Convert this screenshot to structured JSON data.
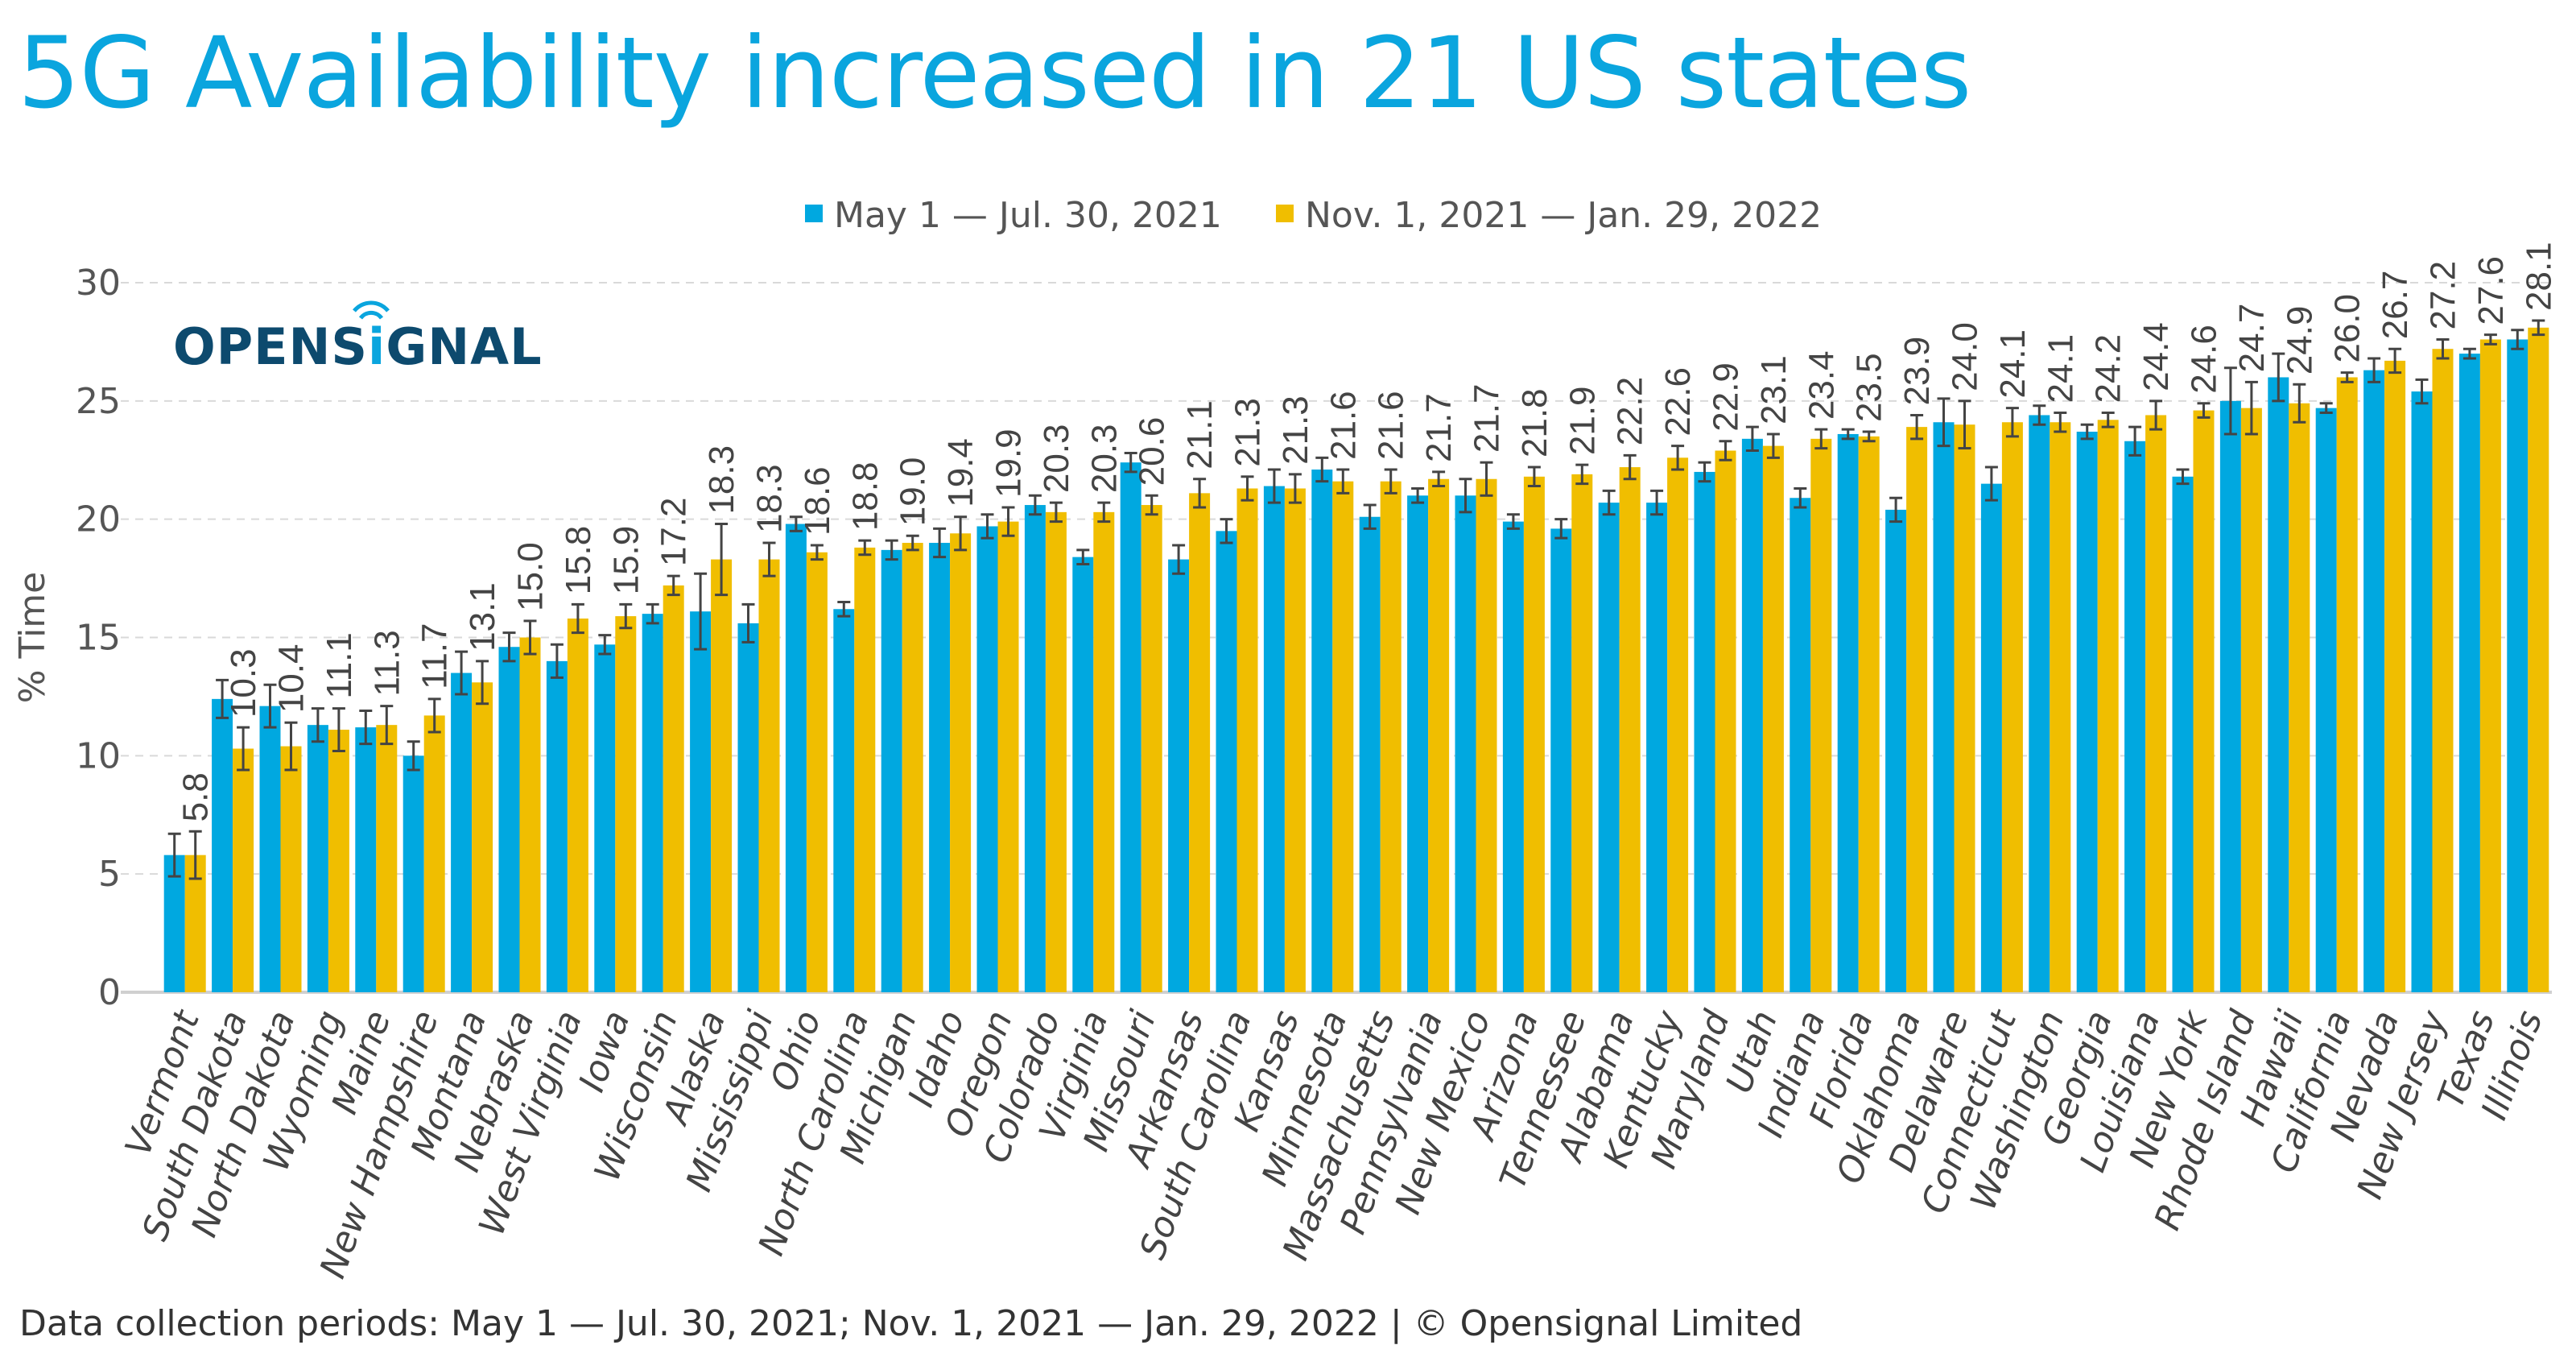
{
  "title": "5G Availability increased in 21 US states",
  "footer": "Data collection periods: May 1 — Jul. 30, 2021; Nov. 1, 2021 — Jan. 29, 2022 | © Opensignal Limited",
  "logo_text": "OPENSIGNAL",
  "colors": {
    "title": "#0aa5de",
    "series1": "#00a8e0",
    "series2": "#f0be00",
    "logo": "#0d4a6e",
    "errorbar": "#444444",
    "grid": "#d9d9d9"
  },
  "chart_data": {
    "type": "bar",
    "title": "5G Availability increased in 21 US states",
    "xlabel": "",
    "ylabel": "% Time",
    "ylim": [
      0,
      30
    ],
    "yticks": [
      0,
      5,
      10,
      15,
      20,
      25,
      30
    ],
    "grid": true,
    "legend_position": "top",
    "categories": [
      "Vermont",
      "South Dakota",
      "North Dakota",
      "Wyoming",
      "Maine",
      "New Hampshire",
      "Montana",
      "Nebraska",
      "West Virginia",
      "Iowa",
      "Wisconsin",
      "Alaska",
      "Mississippi",
      "Ohio",
      "North Carolina",
      "Michigan",
      "Idaho",
      "Oregon",
      "Colorado",
      "Virginia",
      "Missouri",
      "Arkansas",
      "South Carolina",
      "Kansas",
      "Minnesota",
      "Massachusetts",
      "Pennsylvania",
      "New Mexico",
      "Arizona",
      "Tennessee",
      "Alabama",
      "Kentucky",
      "Maryland",
      "Utah",
      "Indiana",
      "Florida",
      "Oklahoma",
      "Delaware",
      "Connecticut",
      "Washington",
      "Georgia",
      "Louisiana",
      "New York",
      "Rhode Island",
      "Hawaii",
      "California",
      "Nevada",
      "New Jersey",
      "Texas",
      "Illinois"
    ],
    "series": [
      {
        "name": "May 1 — Jul. 30, 2021",
        "values": [
          5.8,
          12.4,
          12.1,
          11.3,
          11.2,
          10.0,
          13.5,
          14.6,
          14.0,
          14.7,
          16.0,
          16.1,
          15.6,
          19.8,
          16.2,
          18.7,
          19.0,
          19.7,
          20.6,
          18.4,
          22.4,
          18.3,
          19.5,
          21.4,
          22.1,
          20.1,
          21.0,
          21.0,
          19.9,
          19.6,
          20.7,
          20.7,
          22.0,
          23.4,
          20.9,
          23.6,
          20.4,
          24.1,
          21.5,
          24.4,
          23.7,
          23.3,
          21.8,
          25.0,
          26.0,
          24.7,
          26.3,
          25.4,
          27.0,
          27.6
        ],
        "errors": [
          0.9,
          0.8,
          0.9,
          0.7,
          0.7,
          0.6,
          0.9,
          0.6,
          0.7,
          0.4,
          0.4,
          1.6,
          0.8,
          0.3,
          0.3,
          0.4,
          0.6,
          0.5,
          0.4,
          0.3,
          0.4,
          0.6,
          0.5,
          0.7,
          0.5,
          0.5,
          0.3,
          0.7,
          0.3,
          0.4,
          0.5,
          0.5,
          0.4,
          0.5,
          0.4,
          0.2,
          0.5,
          1.0,
          0.7,
          0.4,
          0.3,
          0.6,
          0.3,
          1.4,
          1.0,
          0.2,
          0.5,
          0.5,
          0.2,
          0.4
        ]
      },
      {
        "name": "Nov. 1, 2021 — Jan. 29, 2022",
        "values": [
          5.8,
          10.3,
          10.4,
          11.1,
          11.3,
          11.7,
          13.1,
          15.0,
          15.8,
          15.9,
          17.2,
          18.3,
          18.3,
          18.6,
          18.8,
          19.0,
          19.4,
          19.9,
          20.3,
          20.3,
          20.6,
          21.1,
          21.3,
          21.3,
          21.6,
          21.6,
          21.7,
          21.7,
          21.8,
          21.9,
          22.2,
          22.6,
          22.9,
          23.1,
          23.4,
          23.5,
          23.9,
          24.0,
          24.1,
          24.1,
          24.2,
          24.4,
          24.6,
          24.7,
          24.9,
          26.0,
          26.7,
          27.2,
          27.6,
          28.1
        ],
        "errors": [
          1.0,
          0.9,
          1.0,
          0.9,
          0.8,
          0.7,
          0.9,
          0.7,
          0.6,
          0.5,
          0.4,
          1.5,
          0.7,
          0.3,
          0.3,
          0.3,
          0.7,
          0.6,
          0.4,
          0.4,
          0.4,
          0.6,
          0.5,
          0.6,
          0.5,
          0.5,
          0.3,
          0.7,
          0.4,
          0.4,
          0.5,
          0.5,
          0.4,
          0.5,
          0.4,
          0.2,
          0.5,
          1.0,
          0.6,
          0.4,
          0.3,
          0.6,
          0.3,
          1.1,
          0.8,
          0.2,
          0.5,
          0.4,
          0.2,
          0.3
        ]
      }
    ]
  }
}
